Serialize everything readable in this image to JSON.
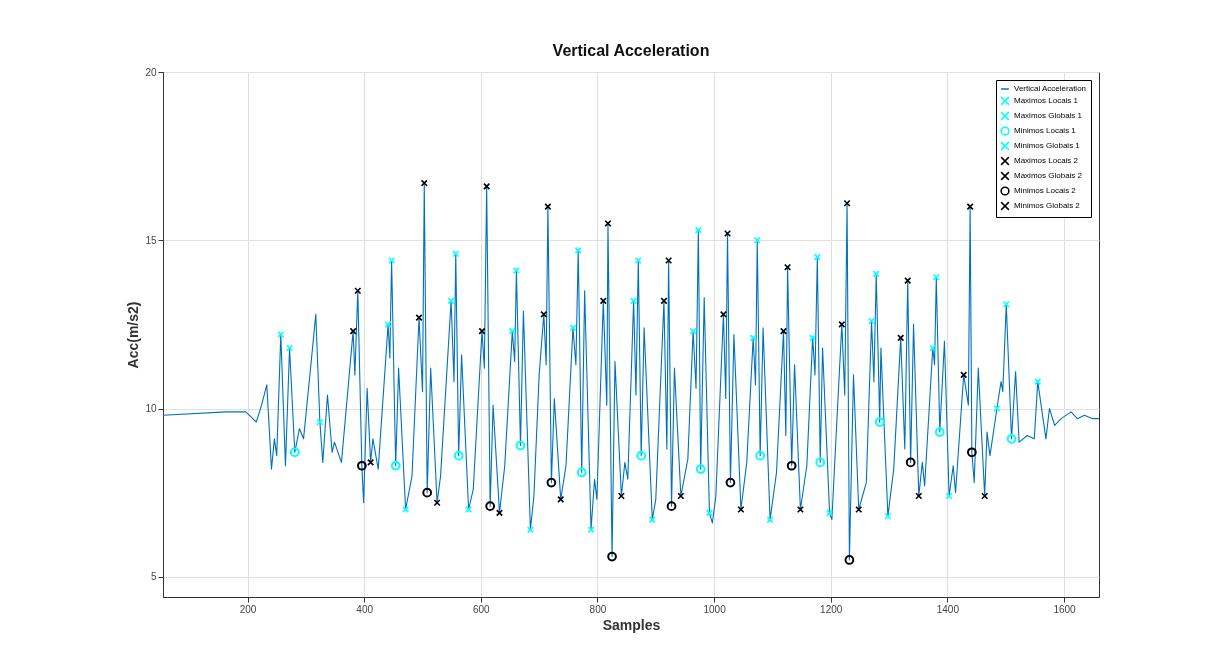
{
  "chart_data": {
    "type": "line",
    "title": "Vertical Acceleration",
    "xlabel": "Samples",
    "ylabel": "Acc(m/s2)",
    "xlim": [
      55,
      1660
    ],
    "ylim": [
      4.4,
      20
    ],
    "xticks": [
      200,
      400,
      600,
      800,
      1000,
      1200,
      1400,
      1600
    ],
    "yticks": [
      5,
      10,
      15,
      20
    ],
    "grid": true,
    "legend": "top right",
    "series": [
      {
        "name": "Vertical Acceleration",
        "color": "#0072bd",
        "x": [
          55,
          163,
          197,
          215,
          224,
          233,
          241,
          246,
          250,
          257,
          265,
          272,
          281,
          289,
          296,
          312,
          317,
          324,
          329,
          337,
          345,
          349,
          361,
          381,
          384,
          389,
          396,
          399,
          405,
          411,
          415,
          424,
          441,
          444,
          447,
          454,
          459,
          471,
          482,
          494,
          500,
          503,
          508,
          514,
          525,
          531,
          549,
          554,
          557,
          562,
          567,
          579,
          587,
          602,
          606,
          610,
          616,
          621,
          632,
          641,
          654,
          658,
          661,
          668,
          673,
          685,
          691,
          700,
          708,
          712,
          715,
          721,
          726,
          737,
          746,
          758,
          763,
          767,
          773,
          778,
          789,
          795,
          799,
          810,
          816,
          818,
          825,
          830,
          841,
          847,
          852,
          862,
          866,
          870,
          875,
          880,
          894,
          900,
          914,
          919,
          922,
          927,
          932,
          943,
          955,
          964,
          969,
          973,
          977,
          983,
          992,
          997,
          1003,
          1016,
          1020,
          1023,
          1028,
          1034,
          1046,
          1056,
          1067,
          1071,
          1074,
          1079,
          1084,
          1096,
          1107,
          1119,
          1123,
          1126,
          1133,
          1138,
          1148,
          1159,
          1169,
          1173,
          1177,
          1182,
          1186,
          1198,
          1202,
          1206,
          1219,
          1224,
          1228,
          1232,
          1239,
          1248,
          1261,
          1270,
          1274,
          1278,
          1284,
          1286,
          1298,
          1308,
          1320,
          1327,
          1332,
          1337,
          1342,
          1351,
          1357,
          1361,
          1375,
          1378,
          1381,
          1387,
          1395,
          1403,
          1410,
          1414,
          1428,
          1436,
          1439,
          1442,
          1446,
          1453,
          1464,
          1468,
          1473,
          1485,
          1492,
          1495,
          1501,
          1510,
          1517,
          1523,
          1537,
          1549,
          1555,
          1569,
          1575,
          1584,
          1595,
          1612,
          1623,
          1635,
          1649,
          1660
        ],
        "values": [
          9.8,
          9.9,
          9.9,
          9.6,
          10.1,
          10.7,
          8.2,
          9.1,
          8.6,
          12.2,
          8.3,
          11.8,
          8.7,
          9.4,
          9.1,
          11.9,
          12.8,
          9.6,
          8.4,
          10.4,
          8.7,
          9.0,
          8.4,
          12.3,
          11.0,
          13.5,
          8.3,
          7.2,
          10.6,
          8.4,
          9.1,
          8.2,
          12.5,
          11.5,
          14.4,
          8.3,
          11.2,
          7.0,
          8.0,
          12.7,
          10.5,
          16.7,
          7.5,
          11.2,
          7.2,
          8.0,
          13.2,
          10.8,
          14.6,
          8.6,
          11.6,
          7.0,
          7.6,
          12.3,
          11.2,
          16.6,
          7.1,
          10.1,
          6.9,
          8.3,
          12.3,
          11.4,
          14.1,
          8.9,
          12.9,
          6.4,
          7.4,
          11.0,
          12.8,
          11.3,
          16.0,
          7.8,
          10.3,
          7.3,
          8.3,
          12.4,
          11.3,
          14.7,
          8.1,
          13.5,
          6.4,
          7.9,
          7.3,
          13.2,
          10.1,
          15.5,
          5.6,
          11.4,
          7.4,
          8.4,
          7.9,
          13.2,
          10.4,
          14.4,
          8.6,
          12.4,
          6.7,
          7.3,
          13.2,
          8.8,
          14.4,
          7.1,
          11.2,
          7.4,
          8.5,
          12.3,
          10.6,
          15.3,
          8.2,
          13.3,
          6.9,
          6.6,
          7.4,
          12.8,
          10.3,
          15.2,
          7.8,
          12.2,
          7.0,
          8.4,
          12.1,
          10.7,
          15.0,
          8.6,
          12.4,
          6.7,
          8.1,
          12.3,
          9.2,
          14.2,
          8.3,
          11.3,
          7.0,
          8.3,
          12.1,
          11.0,
          14.5,
          8.4,
          11.8,
          6.9,
          6.7,
          8.1,
          12.5,
          10.4,
          16.1,
          5.5,
          11.0,
          7.0,
          7.8,
          12.6,
          10.8,
          14.0,
          9.6,
          11.8,
          6.8,
          8.2,
          12.1,
          8.8,
          13.8,
          8.4,
          12.5,
          7.4,
          8.4,
          7.7,
          11.8,
          11.3,
          13.9,
          9.3,
          12.0,
          7.4,
          8.3,
          7.5,
          11.0,
          10.1,
          16.0,
          8.7,
          7.8,
          11.2,
          7.4,
          9.3,
          8.6,
          10.0,
          10.8,
          10.5,
          13.1,
          9.1,
          11.1,
          9.0,
          9.2,
          9.1,
          10.8,
          9.1,
          10.0,
          9.5,
          9.7,
          9.9,
          9.7,
          9.8,
          9.7,
          9.7
        ]
      },
      {
        "name": "Maximos Locais 1",
        "type": "scatter",
        "marker": "cross",
        "color": "#00ffff",
        "x": [
          257,
          441,
          549,
          654,
          758,
          862,
          964,
          1067,
          1169,
          1270,
          1375,
          1485
        ],
        "values": [
          12.2,
          12.5,
          13.2,
          12.3,
          12.4,
          13.2,
          12.3,
          12.1,
          12.1,
          12.6,
          11.8,
          10.0
        ]
      },
      {
        "name": "Maximos Globais 1",
        "type": "scatter",
        "marker": "cross",
        "color": "#00ffff",
        "x": [
          272,
          447,
          557,
          661,
          767,
          870,
          973,
          1074,
          1177,
          1278,
          1381,
          1501
        ],
        "values": [
          11.8,
          14.4,
          14.6,
          14.1,
          14.7,
          14.4,
          15.3,
          15.0,
          14.5,
          14.0,
          13.9,
          13.1
        ]
      },
      {
        "name": "Minimos Locais 1",
        "type": "scatter",
        "marker": "circle",
        "color": "#00ffff",
        "x": [
          281,
          454,
          562,
          668,
          773,
          875,
          977,
          1079,
          1182,
          1284,
          1387,
          1510
        ],
        "values": [
          8.7,
          8.3,
          8.6,
          8.9,
          8.1,
          8.6,
          8.2,
          8.6,
          8.4,
          9.6,
          9.3,
          9.1
        ]
      },
      {
        "name": "Minimos Globais 1",
        "type": "scatter",
        "marker": "cross",
        "color": "#00ffff",
        "x": [
          324,
          471,
          579,
          685,
          789,
          894,
          992,
          1096,
          1198,
          1298,
          1403,
          1555
        ],
        "values": [
          9.6,
          7.0,
          7.0,
          6.4,
          6.4,
          6.7,
          6.9,
          6.7,
          6.9,
          6.8,
          7.4,
          10.8
        ]
      },
      {
        "name": "Maximos Locais 2",
        "type": "scatter",
        "marker": "cross",
        "color": "#000000",
        "x": [
          381,
          494,
          602,
          708,
          810,
          914,
          1016,
          1119,
          1219,
          1320,
          1428
        ],
        "values": [
          12.3,
          12.7,
          12.3,
          12.8,
          13.2,
          13.2,
          12.8,
          12.3,
          12.5,
          12.1,
          11.0
        ]
      },
      {
        "name": "Maximos Globais 2",
        "type": "scatter",
        "marker": "cross",
        "color": "#000000",
        "x": [
          389,
          503,
          610,
          715,
          818,
          922,
          1023,
          1126,
          1228,
          1332,
          1439
        ],
        "values": [
          13.5,
          16.7,
          16.6,
          16.0,
          15.5,
          14.4,
          15.2,
          14.2,
          16.1,
          13.8,
          16.0
        ]
      },
      {
        "name": "Minimos Locais 2",
        "type": "scatter",
        "marker": "circle",
        "color": "#000000",
        "x": [
          396,
          508,
          616,
          721,
          825,
          927,
          1028,
          1133,
          1232,
          1337,
          1442
        ],
        "values": [
          8.3,
          7.5,
          7.1,
          7.8,
          5.6,
          7.1,
          7.8,
          8.3,
          5.5,
          8.4,
          8.7
        ]
      },
      {
        "name": "Minimos Globais 2",
        "type": "scatter",
        "marker": "cross",
        "color": "#000000",
        "x": [
          411,
          525,
          632,
          737,
          841,
          943,
          1046,
          1148,
          1248,
          1351,
          1464
        ],
        "values": [
          8.4,
          7.2,
          6.9,
          7.3,
          7.4,
          7.4,
          7.0,
          7.0,
          7.0,
          7.4,
          7.4
        ]
      }
    ]
  }
}
